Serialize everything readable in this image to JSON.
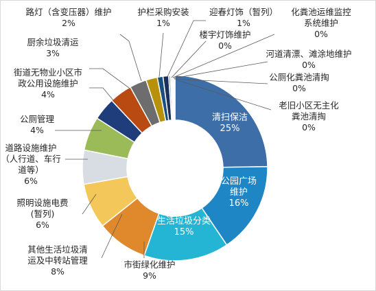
{
  "chart_data": {
    "type": "pie",
    "donut": true,
    "title": "",
    "legend": "none",
    "unit": "%",
    "slices": [
      {
        "name": "清扫保洁",
        "value": 25,
        "label_lines": [
          "清扫保洁"
        ],
        "value_label": "25%",
        "color": "#3d6ea8"
      },
      {
        "name": "公园广场维护",
        "value": 16,
        "label_lines": [
          "公园广场",
          "维护"
        ],
        "value_label": "16%",
        "color": "#1f86c6"
      },
      {
        "name": "生活垃圾分类",
        "value": 15,
        "label_lines": [
          "生活垃圾分类"
        ],
        "value_label": "15%",
        "color": "#23b5d3"
      },
      {
        "name": "市街绿化维护",
        "value": 9,
        "label_lines": [
          "市街绿化维护"
        ],
        "value_label": "9%",
        "color": "#e0882c"
      },
      {
        "name": "其他生活垃圾清运及中转站管理",
        "value": 8,
        "label_lines": [
          "其他生活垃圾清",
          "运及中转站管理"
        ],
        "value_label": "8%",
        "color": "#f4c75a"
      },
      {
        "name": "照明设施电费（暂列）",
        "value": 6,
        "label_lines": [
          "照明设施电费",
          "(暂列)"
        ],
        "value_label": "6%",
        "color": "#ffffff"
      },
      {
        "name": "道路设施维护（人行道、车行道等）",
        "value": 6,
        "label_lines": [
          "道路设施维护",
          "（人行道、车行",
          "道等）"
        ],
        "value_label": "6%",
        "color": "#9bbb59"
      },
      {
        "name": "公厕管理",
        "value": 4,
        "label_lines": [
          "公厕管理"
        ],
        "value_label": "4%",
        "color": "#1f3d7a"
      },
      {
        "name": "街道无物业小区市政公用设施维护",
        "value": 4,
        "label_lines": [
          "街道无物业小区市",
          "政公用设施维护"
        ],
        "value_label": "4%",
        "color": "#b84a12"
      },
      {
        "name": "厨余垃圾清运",
        "value": 3,
        "label_lines": [
          "厨余垃圾清运"
        ],
        "value_label": "3%",
        "color": "#6d6d6d"
      },
      {
        "name": "路灯（含变压器）维护",
        "value": 2,
        "label_lines": [
          "路灯（含变压器）维护"
        ],
        "value_label": "2%",
        "color": "#b8910a"
      },
      {
        "name": "护栏采购安装",
        "value": 1,
        "label_lines": [
          "护栏采购安装"
        ],
        "value_label": "1%",
        "color": "#1a4f80"
      },
      {
        "name": "迎春灯饰（暂列）",
        "value": 1,
        "label_lines": [
          "迎春灯饰（暂列）"
        ],
        "value_label": "1%",
        "color": "#1a2f5a"
      },
      {
        "name": "楼宇灯饰维护",
        "value": 0.3,
        "label_lines": [
          "楼宇灯饰维护"
        ],
        "value_label": "0%",
        "color": "#5b8fd0"
      },
      {
        "name": "化粪池运维监控系统维护",
        "value": 0.2,
        "label_lines": [
          "化粪池运维监控",
          "系统维护"
        ],
        "value_label": "0%",
        "color": "#4aa3df"
      },
      {
        "name": "河道清漂、滩涂地维护",
        "value": 0.2,
        "label_lines": [
          "河道清漂、滩涂地维护"
        ],
        "value_label": "0%",
        "color": "#7ccbe8"
      },
      {
        "name": "公厕化粪池清掏",
        "value": 0.2,
        "label_lines": [
          "公厕化粪池清掏"
        ],
        "value_label": "0%",
        "color": "#f0a860"
      },
      {
        "name": "老旧小区无主化粪池清掏",
        "value": 0.2,
        "label_lines": [
          "老旧小区无主化",
          "粪池清掏"
        ],
        "value_label": "0%",
        "color": "#f6d98a"
      }
    ]
  }
}
